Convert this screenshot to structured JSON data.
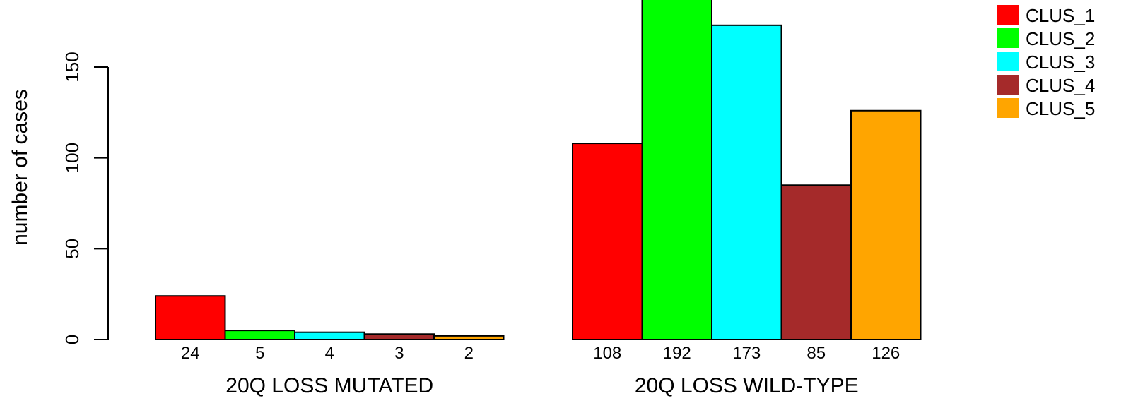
{
  "chart_data": {
    "type": "bar",
    "title": "",
    "ylabel": "number of cases",
    "xlabel": "",
    "ylim": [
      0,
      192
    ],
    "yticks": [
      0,
      50,
      100,
      150
    ],
    "groups": [
      {
        "label": "20Q LOSS MUTATED",
        "values": [
          24,
          5,
          4,
          3,
          2
        ]
      },
      {
        "label": "20Q LOSS WILD-TYPE",
        "values": [
          108,
          192,
          173,
          85,
          126
        ]
      }
    ],
    "series": [
      {
        "name": "CLUS_1",
        "color": "#ff0000"
      },
      {
        "name": "CLUS_2",
        "color": "#00ff00"
      },
      {
        "name": "CLUS_3",
        "color": "#00ffff"
      },
      {
        "name": "CLUS_4",
        "color": "#a52a2a"
      },
      {
        "name": "CLUS_5",
        "color": "#ffa500"
      }
    ],
    "bar_labels": [
      "24",
      "5",
      "4",
      "3",
      "2",
      "108",
      "192",
      "173",
      "85",
      "126"
    ],
    "grid": false,
    "legend_position": "top-right"
  }
}
